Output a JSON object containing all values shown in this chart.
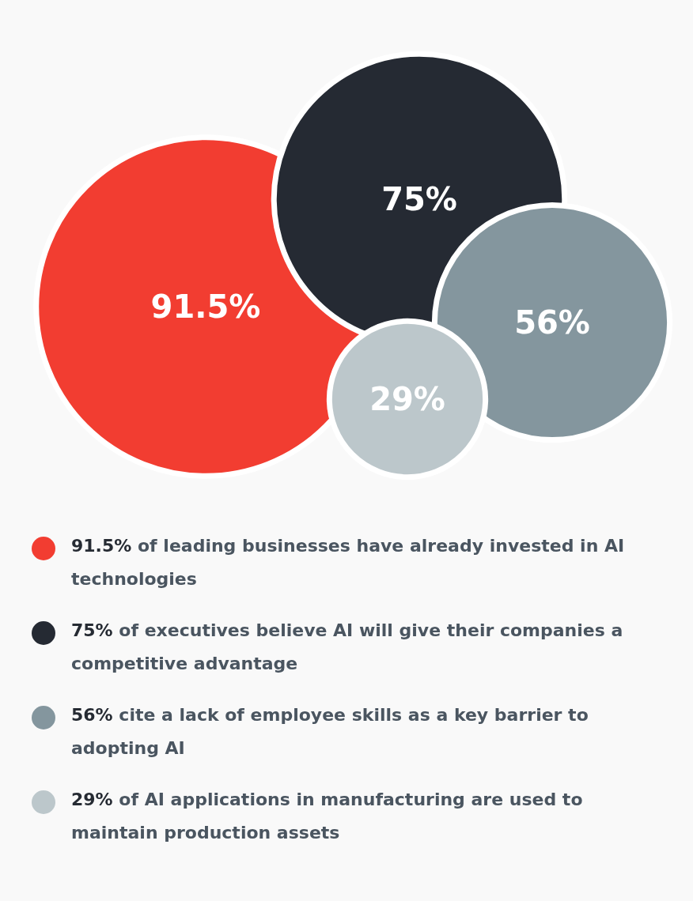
{
  "chart_data": {
    "type": "other",
    "categories": [
      "of leading businesses have already invested in AI technologies",
      "of executives believe AI will give their companies a competitive advantage",
      "cite a lack of employee skills as a key barrier to adopting AI",
      "of AI applications in manufacturing are used to maintain production assets"
    ],
    "values": [
      91.5,
      75,
      56,
      29
    ],
    "value_labels": [
      "91.5%",
      "75%",
      "56%",
      "29%"
    ],
    "colors": [
      "#f23d31",
      "#252a33",
      "#84969e",
      "#bcc7cb"
    ]
  }
}
